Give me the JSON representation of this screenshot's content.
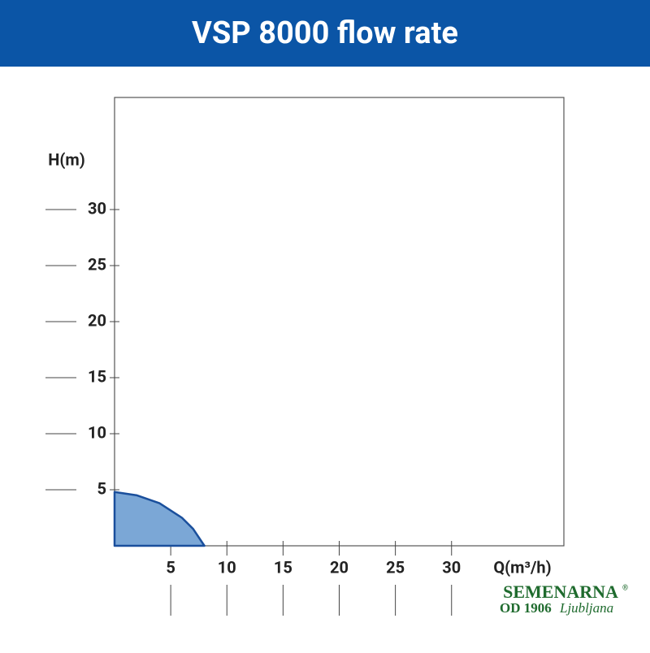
{
  "chart_data": {
    "type": "area",
    "title": "VSP 8000 flow rate",
    "y_label": "H(m)",
    "x_label": "Q(m³/h)",
    "x": [
      0,
      2,
      4,
      6,
      7,
      8
    ],
    "values": [
      4.8,
      4.5,
      3.8,
      2.5,
      1.5,
      0
    ],
    "color": "#7ba7d6",
    "line_color": "#1a4f9c",
    "xlim": [
      0,
      40
    ],
    "ylim": [
      0,
      40
    ],
    "xticks": [
      5,
      10,
      15,
      20,
      25,
      30
    ],
    "yticks": [
      5,
      10,
      15,
      20,
      25,
      30
    ]
  },
  "logo": {
    "name": "SEMENARNA",
    "mark": "®",
    "since": "OD 1906",
    "city": "Ljubljana"
  }
}
